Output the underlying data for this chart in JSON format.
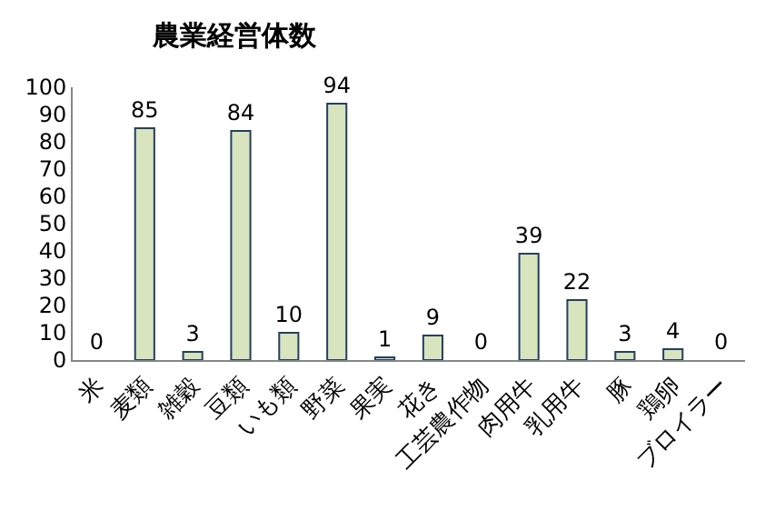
{
  "chart_data": {
    "type": "bar",
    "title": "農業経営体数",
    "categories": [
      "米",
      "麦類",
      "雑穀",
      "豆類",
      "いも類",
      "野菜",
      "果実",
      "花き",
      "工芸農作物",
      "肉用牛",
      "乳用牛",
      "豚",
      "鶏卵",
      "ブロイラー"
    ],
    "values": [
      0,
      85,
      3,
      84,
      10,
      94,
      1,
      9,
      0,
      39,
      22,
      3,
      4,
      0
    ],
    "color": "#d7e4bd",
    "ylim": [
      0,
      100
    ],
    "yticks": [
      0,
      10,
      20,
      30,
      40,
      50,
      60,
      70,
      80,
      90,
      100
    ],
    "grid": false,
    "data_labels": true,
    "legend": false
  }
}
